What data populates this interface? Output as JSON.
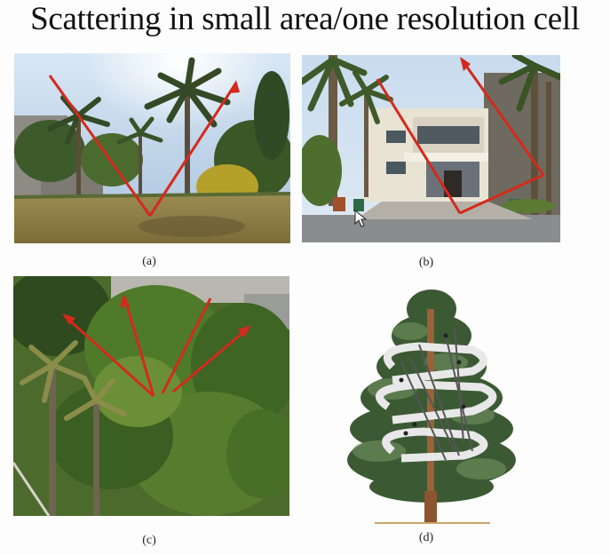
{
  "title": "Scattering in small area/one resolution cell",
  "captions": {
    "a": "(a)",
    "b": "(b)",
    "c": "(c)",
    "d": "(d)"
  },
  "colors": {
    "arrow": "#d42a1c",
    "sky": "#bcd3e8",
    "grass": "#8d7a45",
    "foliage": "#3f5f22"
  }
}
